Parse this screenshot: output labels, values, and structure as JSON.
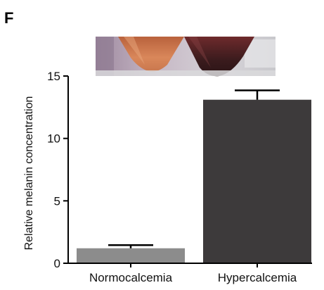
{
  "panel_label": "F",
  "colors": {
    "normocalcemia_bar": "#8c8c8c",
    "hypercalcemia_bar": "#3d3a3b",
    "axis": "#000000"
  },
  "photo": {
    "description_icon": "tubes-photo",
    "left_tube_color": "#c9774e",
    "right_tube_color": "#3a1b1d"
  },
  "chart_data": {
    "type": "bar",
    "categories": [
      "Normocalcemia",
      "Hypercalcemia"
    ],
    "values": [
      1.2,
      13.1
    ],
    "errors": [
      0.25,
      0.75
    ],
    "title": "",
    "xlabel": "",
    "ylabel": "Relative melanin concentration",
    "ylim": [
      0,
      15
    ],
    "yticks": [
      0,
      5,
      10,
      15
    ],
    "ytick_labels": [
      "0",
      "5",
      "10",
      "15"
    ],
    "grid": false,
    "legend": "none"
  }
}
